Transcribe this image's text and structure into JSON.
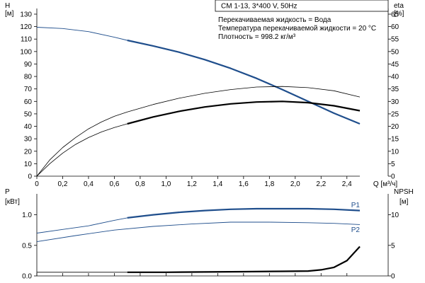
{
  "title_box": "CM 1-13, 3*400 V, 50Hz",
  "fluid_info": [
    "Перекачиваемая жидкость = Вода",
    "Температура перекачиваемой жидкости = 20 °C",
    "Плотность = 998.2 кг/м³"
  ],
  "colors": {
    "blue": "#1f4e8c",
    "thin": "#000000",
    "thick": "#000000"
  },
  "chart_data": [
    {
      "type": "line",
      "title": "",
      "xlabel": "Q [м³/ч]",
      "xlim": [
        0,
        2.5
      ],
      "xticks": [
        "0",
        "0,2",
        "0,4",
        "0,6",
        "0,8",
        "1,0",
        "1,2",
        "1,4",
        "1,6",
        "1,8",
        "2,0",
        "2,2",
        "2,4"
      ],
      "ylabel_left": [
        "H",
        "[м]"
      ],
      "ylim_left": [
        0,
        130
      ],
      "yticks_left": [
        "0",
        "10",
        "20",
        "30",
        "40",
        "50",
        "60",
        "70",
        "80",
        "90",
        "100",
        "110",
        "120",
        "130"
      ],
      "ylabel_right": [
        "eta",
        "[%]"
      ],
      "ylim_right": [
        0,
        65
      ],
      "yticks_right": [
        "0",
        "5",
        "10",
        "15",
        "20",
        "25",
        "30",
        "35",
        "40",
        "45",
        "50",
        "55",
        "60",
        "65"
      ],
      "grid": false,
      "series": [
        {
          "axis": "left",
          "style": "blue-thin",
          "points": [
            [
              0,
              119.5
            ],
            [
              0.2,
              118.5
            ],
            [
              0.4,
              116
            ],
            [
              0.6,
              111.5
            ],
            [
              0.7,
              109
            ]
          ]
        },
        {
          "axis": "left",
          "style": "blue-thick",
          "points": [
            [
              0.7,
              109
            ],
            [
              0.9,
              104.5
            ],
            [
              1.1,
              99.5
            ],
            [
              1.3,
              93.5
            ],
            [
              1.5,
              86.5
            ],
            [
              1.7,
              78.5
            ],
            [
              1.9,
              69.5
            ],
            [
              2.1,
              60
            ],
            [
              2.3,
              50.5
            ],
            [
              2.5,
              42
            ]
          ]
        },
        {
          "axis": "left",
          "style": "black-thin",
          "points": [
            [
              0,
              0
            ],
            [
              0.1,
              13
            ],
            [
              0.2,
              23
            ],
            [
              0.3,
              31
            ],
            [
              0.4,
              38
            ],
            [
              0.5,
              43.5
            ],
            [
              0.6,
              48
            ],
            [
              0.7,
              51.5
            ],
            [
              0.9,
              57.5
            ],
            [
              1.1,
              62.5
            ],
            [
              1.3,
              66.5
            ],
            [
              1.5,
              69.5
            ],
            [
              1.7,
              71.5
            ],
            [
              1.9,
              72
            ],
            [
              2.1,
              71
            ],
            [
              2.3,
              68.5
            ],
            [
              2.5,
              63.5
            ]
          ]
        },
        {
          "axis": "left",
          "style": "black-thin",
          "points": [
            [
              0,
              0
            ],
            [
              0.1,
              10
            ],
            [
              0.2,
              18.5
            ],
            [
              0.3,
              25.5
            ],
            [
              0.4,
              31
            ],
            [
              0.5,
              35.5
            ],
            [
              0.6,
              39
            ],
            [
              0.7,
              42
            ]
          ]
        },
        {
          "axis": "left",
          "style": "black-thick",
          "points": [
            [
              0.7,
              42
            ],
            [
              0.9,
              47.5
            ],
            [
              1.1,
              52
            ],
            [
              1.3,
              55.5
            ],
            [
              1.5,
              58
            ],
            [
              1.7,
              59.5
            ],
            [
              1.9,
              60
            ],
            [
              2.1,
              59
            ],
            [
              2.3,
              56.5
            ],
            [
              2.5,
              52.5
            ]
          ]
        }
      ]
    },
    {
      "type": "line",
      "title": "",
      "xlim": [
        0,
        2.5
      ],
      "ylabel_left": [
        "P",
        "[кВт]"
      ],
      "ylim_left": [
        0,
        1.25
      ],
      "yticks_left": [
        [
          "0.0",
          0
        ],
        [
          "0.5",
          0.5
        ],
        [
          "1.0",
          1.0
        ]
      ],
      "ylabel_right": [
        "NPSH",
        "[м]"
      ],
      "ylim_right": [
        0,
        12.5
      ],
      "yticks_right": [
        [
          "0",
          0
        ],
        [
          "5",
          5
        ],
        [
          "10",
          10
        ]
      ],
      "grid": false,
      "series": [
        {
          "name": "P1",
          "axis": "left",
          "style": "blue-thin",
          "points": [
            [
              0,
              0.7
            ],
            [
              0.2,
              0.76
            ],
            [
              0.4,
              0.82
            ],
            [
              0.6,
              0.91
            ],
            [
              0.7,
              0.95
            ]
          ]
        },
        {
          "name": "P1",
          "axis": "left",
          "style": "blue-thick",
          "points": [
            [
              0.7,
              0.95
            ],
            [
              0.9,
              1.0
            ],
            [
              1.1,
              1.04
            ],
            [
              1.3,
              1.07
            ],
            [
              1.5,
              1.09
            ],
            [
              1.7,
              1.1
            ],
            [
              1.9,
              1.1
            ],
            [
              2.1,
              1.1
            ],
            [
              2.3,
              1.09
            ],
            [
              2.5,
              1.07
            ]
          ]
        },
        {
          "name": "P2",
          "axis": "left",
          "style": "blue-thin",
          "points": [
            [
              0,
              0.56
            ],
            [
              0.3,
              0.66
            ],
            [
              0.6,
              0.75
            ],
            [
              0.9,
              0.81
            ],
            [
              1.2,
              0.85
            ],
            [
              1.5,
              0.88
            ],
            [
              1.8,
              0.88
            ],
            [
              2.1,
              0.87
            ],
            [
              2.3,
              0.86
            ],
            [
              2.5,
              0.84
            ]
          ]
        },
        {
          "axis": "left",
          "style": "black-thin",
          "points": [
            [
              0,
              0.06
            ],
            [
              0.7,
              0.06
            ]
          ]
        },
        {
          "axis": "left",
          "style": "black-thick",
          "points": [
            [
              0.7,
              0.06
            ],
            [
              1.0,
              0.06
            ],
            [
              1.3,
              0.065
            ],
            [
              1.6,
              0.07
            ],
            [
              1.9,
              0.075
            ],
            [
              2.1,
              0.08
            ],
            [
              2.2,
              0.1
            ],
            [
              2.3,
              0.14
            ],
            [
              2.4,
              0.25
            ],
            [
              2.5,
              0.48
            ]
          ]
        }
      ],
      "series_labels": [
        [
          "P1",
          2.4,
          1.12
        ],
        [
          "P2",
          2.4,
          0.72
        ]
      ]
    }
  ]
}
